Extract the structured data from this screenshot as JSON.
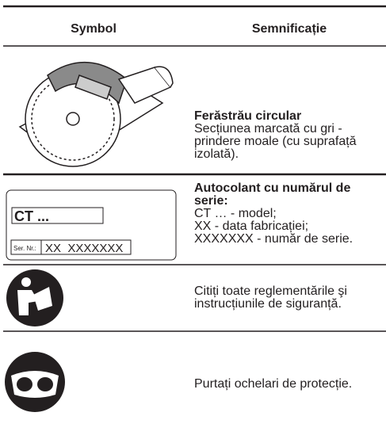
{
  "table": {
    "header": [
      "Symbol",
      "Semnificație"
    ],
    "rows": [
      {
        "title": "Ferăstrău circular",
        "lines": [
          "Secțiunea marcată cu gri -",
          "prindere moale (cu suprafață",
          "izolată)."
        ]
      },
      {
        "symbol": [
          "CT ...",
          "Ser. Nr.:",
          "XX  XXXXXXX"
        ],
        "title": [
          "Autocolant cu numărul de",
          "serie:"
        ],
        "lines": [
          "CT … - model;",
          "XX - data fabricației;",
          "XXXXXXX - număr de serie."
        ]
      },
      {
        "lines": [
          "Citiți toate reglementările şi",
          "instrucțiunile de siguranță."
        ]
      },
      {
        "lines": [
          "Purtați ochelari de protecție."
        ]
      }
    ]
  }
}
